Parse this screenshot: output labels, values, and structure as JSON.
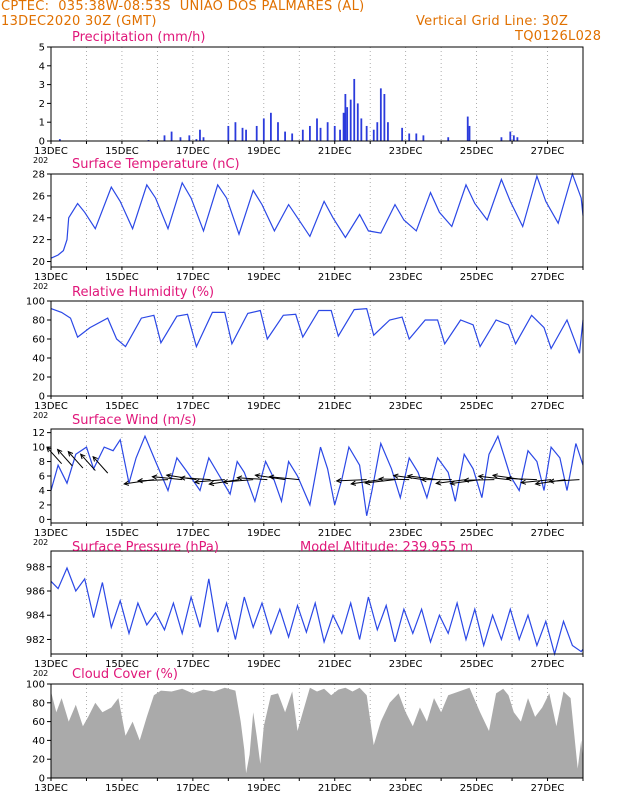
{
  "header": {
    "line1_left": "CPTEC:  035:38W-08:53S  UNIAO DOS PALMARES (AL)",
    "line2_left": "13DEC2020 30Z (GMT)",
    "line2_right": "Vertical Grid Line: 30Z",
    "line3_right": "TQ0126L028"
  },
  "colors": {
    "header": "#e07000",
    "title": "#e0177a",
    "line": "#2b48e6",
    "bar": "#2b3bdc",
    "cloud": "#aaaaaa",
    "arrow": "#000000"
  },
  "x_axis": {
    "start_day": 13,
    "end_day": 28,
    "labels": [
      "13DEC",
      "15DEC",
      "17DEC",
      "19DEC",
      "21DEC",
      "23DEC",
      "25DEC",
      "27DEC"
    ],
    "cut_label": "202"
  },
  "chart_data": [
    {
      "type": "bar",
      "title": "Precipitation (mm/h)",
      "ylim": [
        0,
        5
      ],
      "yticks": [
        "0",
        "1",
        "2",
        "3",
        "4",
        "5"
      ],
      "x": [
        13.25,
        15.75,
        16.2,
        16.4,
        16.65,
        16.9,
        17.1,
        17.2,
        17.3,
        18.0,
        18.2,
        18.4,
        18.5,
        18.8,
        19.0,
        19.2,
        19.4,
        19.6,
        19.8,
        20.1,
        20.3,
        20.5,
        20.6,
        20.8,
        21.0,
        21.15,
        21.25,
        21.3,
        21.35,
        21.45,
        21.55,
        21.65,
        21.75,
        21.9,
        22.1,
        22.2,
        22.3,
        22.4,
        22.5,
        22.9,
        23.1,
        23.3,
        23.5,
        24.2,
        24.75,
        24.8,
        25.7,
        25.95,
        26.05,
        26.15
      ],
      "values": [
        0.1,
        0.05,
        0.3,
        0.5,
        0.2,
        0.3,
        0.1,
        0.6,
        0.2,
        0.8,
        1.0,
        0.7,
        0.6,
        0.8,
        1.2,
        1.5,
        1.0,
        0.5,
        0.4,
        0.6,
        0.8,
        1.2,
        0.7,
        1.0,
        0.8,
        0.6,
        1.5,
        2.5,
        1.8,
        2.2,
        3.3,
        2.0,
        1.2,
        0.8,
        0.6,
        1.0,
        2.8,
        2.5,
        1.0,
        0.7,
        0.4,
        0.4,
        0.3,
        0.2,
        1.3,
        0.8,
        0.2,
        0.5,
        0.3,
        0.2
      ]
    },
    {
      "type": "line",
      "title": "Surface Temperature (nC)",
      "ylim": [
        19.5,
        28
      ],
      "yticks": [
        "20",
        "22",
        "24",
        "26",
        "28"
      ],
      "x": [
        13.0,
        13.2,
        13.35,
        13.45,
        13.5,
        13.75,
        13.95,
        14.25,
        14.7,
        14.95,
        15.3,
        15.7,
        15.95,
        16.3,
        16.7,
        16.95,
        17.3,
        17.7,
        17.95,
        18.3,
        18.7,
        18.95,
        19.3,
        19.7,
        19.95,
        20.3,
        20.7,
        20.95,
        21.3,
        21.7,
        21.95,
        22.3,
        22.7,
        22.95,
        23.3,
        23.7,
        23.95,
        24.3,
        24.7,
        24.95,
        25.3,
        25.7,
        25.95,
        26.3,
        26.7,
        26.95,
        27.3,
        27.7,
        27.95,
        28.0
      ],
      "values": [
        20.3,
        20.6,
        21.0,
        22.0,
        24.0,
        25.3,
        24.5,
        23.0,
        26.8,
        25.5,
        23.0,
        27.0,
        25.8,
        23.0,
        27.2,
        25.8,
        22.8,
        27.0,
        25.8,
        22.5,
        26.5,
        25.2,
        22.8,
        25.2,
        24.0,
        22.3,
        25.5,
        24.0,
        22.2,
        24.3,
        22.8,
        22.6,
        25.2,
        23.8,
        22.8,
        26.3,
        24.5,
        23.2,
        27.0,
        25.3,
        23.8,
        27.5,
        25.5,
        23.2,
        27.8,
        25.5,
        23.5,
        28.0,
        25.8,
        24.2
      ]
    },
    {
      "type": "line",
      "title": "Relative Humidity (%)",
      "ylim": [
        0,
        100
      ],
      "yticks": [
        "0",
        "20",
        "40",
        "60",
        "80",
        "100"
      ],
      "x": [
        13.0,
        13.3,
        13.55,
        13.75,
        14.1,
        14.6,
        14.85,
        15.1,
        15.55,
        15.9,
        16.1,
        16.55,
        16.85,
        17.1,
        17.55,
        17.9,
        18.1,
        18.55,
        18.9,
        19.1,
        19.55,
        19.9,
        20.1,
        20.55,
        20.9,
        21.1,
        21.55,
        21.9,
        22.1,
        22.55,
        22.9,
        23.1,
        23.55,
        23.9,
        24.1,
        24.55,
        24.9,
        25.1,
        25.55,
        25.9,
        26.1,
        26.55,
        26.9,
        27.1,
        27.55,
        27.9,
        28.0
      ],
      "values": [
        92,
        88,
        82,
        62,
        72,
        82,
        60,
        52,
        82,
        85,
        56,
        84,
        86,
        52,
        88,
        88,
        55,
        87,
        90,
        60,
        85,
        86,
        62,
        90,
        90,
        63,
        91,
        92,
        64,
        80,
        83,
        60,
        80,
        80,
        55,
        80,
        75,
        52,
        80,
        75,
        55,
        85,
        72,
        50,
        80,
        45,
        80
      ]
    },
    {
      "type": "line",
      "title": "Surface Wind (m/s)",
      "ylim": [
        -0.5,
        12.5
      ],
      "yticks": [
        "0",
        "2",
        "4",
        "6",
        "8",
        "10",
        "12"
      ],
      "x": [
        13.0,
        13.2,
        13.45,
        13.7,
        14.0,
        14.2,
        14.5,
        14.75,
        14.95,
        15.2,
        15.4,
        15.65,
        15.95,
        16.3,
        16.55,
        16.85,
        17.2,
        17.45,
        17.75,
        18.05,
        18.25,
        18.45,
        18.75,
        19.05,
        19.25,
        19.5,
        19.7,
        19.95,
        20.3,
        20.6,
        20.8,
        21.0,
        21.2,
        21.4,
        21.7,
        21.9,
        22.05,
        22.3,
        22.6,
        22.85,
        23.1,
        23.35,
        23.6,
        23.9,
        24.2,
        24.4,
        24.65,
        24.9,
        25.15,
        25.35,
        25.6,
        25.95,
        26.2,
        26.45,
        26.7,
        26.9,
        27.1,
        27.35,
        27.55,
        27.8,
        28.0
      ],
      "values": [
        4.0,
        7.5,
        5.0,
        9.0,
        10.0,
        7.0,
        10.0,
        9.5,
        11.0,
        5.0,
        8.5,
        11.5,
        8.0,
        4.0,
        8.5,
        6.5,
        4.0,
        8.5,
        6.0,
        3.5,
        8.0,
        6.5,
        2.5,
        8.0,
        6.0,
        2.5,
        8.0,
        6.0,
        2.0,
        10.0,
        7.0,
        2.0,
        5.5,
        10.0,
        7.5,
        0.5,
        4.0,
        10.5,
        7.0,
        3.0,
        8.5,
        6.5,
        3.0,
        8.5,
        6.5,
        2.5,
        9.0,
        7.0,
        3.0,
        9.0,
        11.5,
        6.0,
        4.0,
        9.5,
        8.0,
        4.0,
        10.0,
        8.5,
        4.0,
        10.5,
        7.5
      ]
    },
    {
      "type": "line",
      "title": "Surface Pressure (hPa)",
      "subtitle": "Model Altitude: 239.955 m",
      "ylim": [
        980.8,
        989.3
      ],
      "yticks": [
        "982",
        "984",
        "986",
        "988"
      ],
      "x": [
        13.0,
        13.2,
        13.45,
        13.7,
        13.95,
        14.2,
        14.45,
        14.7,
        14.95,
        15.2,
        15.45,
        15.7,
        15.95,
        16.2,
        16.45,
        16.7,
        16.95,
        17.2,
        17.45,
        17.7,
        17.95,
        18.2,
        18.45,
        18.7,
        18.95,
        19.2,
        19.45,
        19.7,
        19.95,
        20.2,
        20.45,
        20.7,
        20.95,
        21.2,
        21.45,
        21.7,
        21.95,
        22.2,
        22.45,
        22.7,
        22.95,
        23.2,
        23.45,
        23.7,
        23.95,
        24.2,
        24.45,
        24.7,
        24.95,
        25.2,
        25.45,
        25.7,
        25.95,
        26.2,
        26.45,
        26.7,
        26.95,
        27.2,
        27.45,
        27.7,
        27.95,
        28.0
      ],
      "values": [
        986.8,
        986.2,
        987.9,
        986.0,
        987.0,
        983.8,
        986.7,
        983.0,
        985.2,
        982.5,
        985.0,
        983.2,
        984.2,
        982.8,
        985.0,
        982.5,
        985.5,
        983.0,
        987.0,
        982.6,
        985.0,
        982.0,
        985.5,
        983.0,
        985.0,
        982.5,
        984.5,
        982.2,
        984.8,
        982.6,
        985.0,
        981.8,
        984.0,
        982.5,
        985.0,
        982.0,
        985.5,
        982.8,
        984.8,
        981.8,
        984.5,
        982.5,
        984.5,
        981.8,
        984.0,
        982.5,
        985.0,
        982.0,
        984.5,
        981.5,
        984.0,
        982.0,
        984.5,
        982.0,
        984.0,
        981.5,
        983.5,
        980.8,
        983.5,
        981.5,
        981.0,
        981.2
      ]
    },
    {
      "type": "area",
      "title": "Cloud Cover (%)",
      "ylim": [
        0,
        100
      ],
      "yticks": [
        "0",
        "20",
        "40",
        "60",
        "80",
        "100"
      ],
      "x": [
        13.0,
        13.15,
        13.3,
        13.5,
        13.7,
        13.9,
        14.05,
        14.25,
        14.45,
        14.7,
        14.9,
        15.1,
        15.3,
        15.5,
        15.7,
        15.9,
        16.1,
        16.4,
        16.7,
        17.0,
        17.3,
        17.6,
        17.9,
        18.2,
        18.35,
        18.45,
        18.5,
        18.6,
        18.7,
        18.8,
        18.9,
        19.0,
        19.2,
        19.4,
        19.6,
        19.8,
        19.95,
        20.1,
        20.3,
        20.5,
        20.7,
        20.9,
        21.1,
        21.3,
        21.5,
        21.7,
        21.9,
        22.1,
        22.3,
        22.55,
        22.8,
        23.0,
        23.2,
        23.4,
        23.6,
        23.8,
        24.0,
        24.2,
        24.5,
        24.8,
        25.1,
        25.35,
        25.55,
        25.75,
        25.9,
        26.05,
        26.25,
        26.45,
        26.65,
        26.85,
        27.05,
        27.25,
        27.45,
        27.65,
        27.85,
        27.95,
        28.0
      ],
      "values": [
        92,
        70,
        85,
        60,
        78,
        55,
        65,
        80,
        70,
        75,
        85,
        45,
        60,
        40,
        65,
        88,
        93,
        92,
        95,
        90,
        94,
        92,
        96,
        93,
        60,
        30,
        5,
        25,
        70,
        45,
        15,
        55,
        88,
        90,
        70,
        92,
        50,
        70,
        96,
        92,
        95,
        88,
        94,
        96,
        92,
        96,
        88,
        35,
        60,
        80,
        90,
        70,
        55,
        75,
        60,
        85,
        70,
        88,
        92,
        96,
        70,
        50,
        90,
        95,
        88,
        70,
        60,
        85,
        65,
        75,
        90,
        55,
        92,
        85,
        10,
        40,
        20
      ]
    }
  ]
}
